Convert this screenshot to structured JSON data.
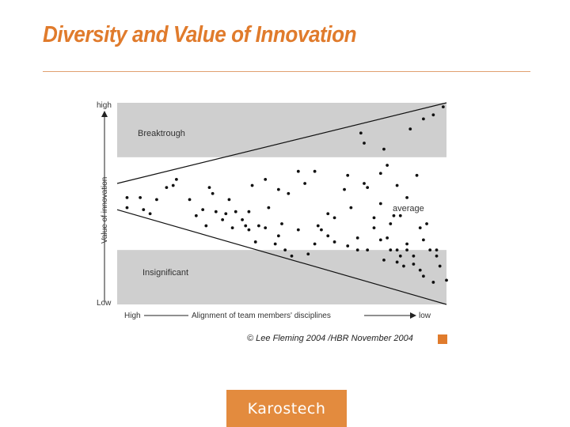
{
  "slide": {
    "title": "Diversity and Value of Innovation",
    "copyright": "© Lee Fleming 2004 /HBR November 2004",
    "logo_text": "Karostech"
  },
  "colors": {
    "accent": "#e07b2c",
    "band_gray": "#cfcfcf",
    "dot": "#111111"
  },
  "chart_data": {
    "type": "scatter",
    "xlabel": "Alignment of team members' disciplines",
    "ylabel": "Value of innovation",
    "x_tick_labels": [
      "High",
      "low"
    ],
    "y_tick_labels": [
      "high",
      "Low"
    ],
    "xlim": [
      0,
      100
    ],
    "ylim": [
      0,
      100
    ],
    "regions": [
      {
        "label": "Breaktrough",
        "range": [
          73,
          100
        ]
      },
      {
        "label": "average"
      },
      {
        "label": "Insignificant",
        "range": [
          0,
          27
        ]
      }
    ],
    "upper_line": {
      "x": [
        0,
        100
      ],
      "y": [
        60,
        100
      ]
    },
    "lower_line": {
      "x": [
        0,
        100
      ],
      "y": [
        47,
        0
      ]
    },
    "points": [
      [
        3,
        53
      ],
      [
        7,
        53
      ],
      [
        12,
        52
      ],
      [
        3,
        48
      ],
      [
        8,
        47
      ],
      [
        10,
        45
      ],
      [
        24,
        44
      ],
      [
        22,
        52
      ],
      [
        15,
        58
      ],
      [
        18,
        62
      ],
      [
        29,
        55
      ],
      [
        34,
        52
      ],
      [
        28,
        58
      ],
      [
        30,
        46
      ],
      [
        32,
        42
      ],
      [
        35,
        38
      ],
      [
        38,
        42
      ],
      [
        40,
        46
      ],
      [
        39,
        39
      ],
      [
        43,
        39
      ],
      [
        45,
        38
      ],
      [
        42,
        31
      ],
      [
        48,
        30
      ],
      [
        50,
        40
      ],
      [
        49,
        34
      ],
      [
        51,
        27
      ],
      [
        53,
        24
      ],
      [
        58,
        25
      ],
      [
        55,
        37
      ],
      [
        61,
        39
      ],
      [
        64,
        34
      ],
      [
        60,
        30
      ],
      [
        66,
        31
      ],
      [
        70,
        29
      ],
      [
        73,
        33
      ],
      [
        73,
        27
      ],
      [
        76,
        27
      ],
      [
        78,
        38
      ],
      [
        80,
        32
      ],
      [
        82,
        33
      ],
      [
        83,
        27
      ],
      [
        85,
        27
      ],
      [
        88,
        27
      ],
      [
        86,
        24
      ],
      [
        85,
        21
      ],
      [
        87,
        19
      ],
      [
        90,
        24
      ],
      [
        90,
        20
      ],
      [
        92,
        17
      ],
      [
        93,
        14
      ],
      [
        96,
        11
      ],
      [
        95,
        27
      ],
      [
        97,
        27
      ],
      [
        93,
        32
      ],
      [
        92,
        38
      ],
      [
        94,
        40
      ],
      [
        97,
        24
      ],
      [
        98,
        19
      ],
      [
        100,
        12
      ],
      [
        66,
        43
      ],
      [
        64,
        45
      ],
      [
        71,
        48
      ],
      [
        69,
        57
      ],
      [
        75,
        60
      ],
      [
        80,
        50
      ],
      [
        84,
        44
      ],
      [
        86,
        44
      ],
      [
        80,
        65
      ],
      [
        91,
        64
      ],
      [
        88,
        53
      ],
      [
        75,
        80
      ],
      [
        74,
        85
      ],
      [
        81,
        77
      ],
      [
        89,
        87
      ],
      [
        93,
        92
      ],
      [
        96,
        94
      ],
      [
        99,
        98
      ],
      [
        57,
        60
      ],
      [
        49,
        57
      ],
      [
        41,
        59
      ],
      [
        45,
        62
      ],
      [
        52,
        55
      ],
      [
        55,
        66
      ],
      [
        60,
        66
      ],
      [
        70,
        64
      ],
      [
        76,
        58
      ],
      [
        46,
        48
      ],
      [
        62,
        37
      ],
      [
        40,
        37
      ],
      [
        27,
        39
      ],
      [
        26,
        47
      ],
      [
        33,
        45
      ],
      [
        36,
        46
      ],
      [
        17,
        59
      ],
      [
        82,
        69
      ],
      [
        85,
        59
      ],
      [
        83,
        40
      ],
      [
        78,
        43
      ],
      [
        81,
        22
      ],
      [
        88,
        30
      ]
    ]
  }
}
